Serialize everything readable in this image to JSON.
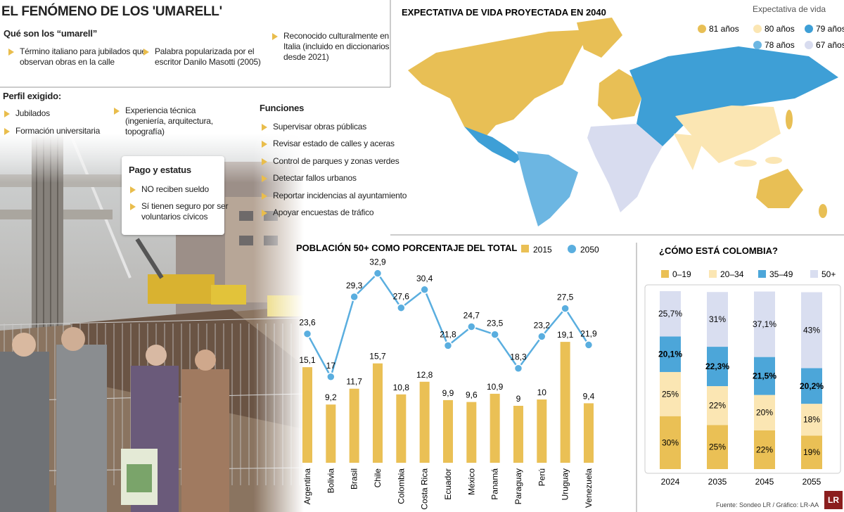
{
  "header": {
    "title": "EL FENÓMENO DE LOS 'UMARELL'"
  },
  "definition": {
    "title": "Qué son los “umarell”",
    "items": [
      "Término italiano para jubilados que observan obras en la calle",
      "Palabra popularizada por el escritor Danilo Masotti (2005)",
      "Reconocido culturalmente en Italia (incluido en diccionarios desde 2021)"
    ]
  },
  "profile": {
    "title": "Perfil exigido:",
    "items": [
      "Jubilados",
      "Formación universitaria",
      "Experiencia técnica (ingeniería, arquitectura, topografía)"
    ]
  },
  "functions": {
    "title": "Funciones",
    "items": [
      "Supervisar obras públicas",
      "Revisar estado de calles y aceras",
      "Control de parques y zonas verdes",
      "Detectar fallos urbanos",
      "Reportar incidencias al ayuntamiento",
      "Apoyar encuestas de tráfico"
    ]
  },
  "pay": {
    "title": "Pago y estatus",
    "items": [
      "NO reciben sueldo",
      "Sí tienen seguro por ser voluntarios cívicos"
    ]
  },
  "map": {
    "title": "EXPECTATIVA DE VIDA PROYECTADA EN 2040",
    "legend_title": "Expectativa de vida",
    "legend": [
      {
        "label": "81 años",
        "color": "#e8bf55"
      },
      {
        "label": "80 años",
        "color": "#fbe6b3"
      },
      {
        "label": "79 años",
        "color": "#3e9fd6"
      },
      {
        "label": "78 años",
        "color": "#6cb6e2"
      },
      {
        "label": "67 años",
        "color": "#d8dcef"
      }
    ]
  },
  "chart_data": [
    {
      "type": "bar",
      "title": "POBLACIÓN 50+ COMO PORCENTAJE DEL TOTAL",
      "categories": [
        "Argentina",
        "Bolivia",
        "Brasil",
        "Chile",
        "Colombia",
        "Costa Rica",
        "Ecuador",
        "México",
        "Panamá",
        "Paraguay",
        "Perú",
        "Uruguay",
        "Venezuela"
      ],
      "series": [
        {
          "name": "2015",
          "type": "bar",
          "color": "#eac055",
          "values": [
            15.1,
            9.2,
            11.7,
            15.7,
            10.8,
            12.8,
            9.9,
            9.6,
            10.9,
            9,
            10,
            19.1,
            9.4
          ],
          "value_labels": [
            "15,1",
            "9,2",
            "11,7",
            "15,7",
            "10,8",
            "12,8",
            "9,9",
            "9,6",
            "10,9",
            "9",
            "10",
            "19,1",
            "9,4"
          ]
        },
        {
          "name": "2050",
          "type": "line",
          "color": "#5aaedf",
          "values": [
            23.6,
            17,
            29.3,
            32.9,
            27.6,
            30.4,
            21.8,
            24.7,
            23.5,
            18.3,
            23.2,
            27.5,
            21.9
          ],
          "value_labels": [
            "23,6",
            "17",
            "29,3",
            "32,9",
            "27,6",
            "30,4",
            "21,8",
            "24,7",
            "23,5",
            "18,3",
            "23,2",
            "27,5",
            "21,9"
          ]
        }
      ]
    },
    {
      "type": "stacked_bar",
      "title": "¿CÓMO ESTÁ COLOMBIA?",
      "categories": [
        "2024",
        "2035",
        "2045",
        "2055"
      ],
      "series": [
        {
          "name": "0–19",
          "color": "#eac055",
          "values": [
            30,
            25,
            22,
            19
          ],
          "value_labels": [
            "30%",
            "25%",
            "22%",
            "19%"
          ]
        },
        {
          "name": "20–34",
          "color": "#fbe6b3",
          "values": [
            25,
            22,
            20,
            18
          ],
          "value_labels": [
            "25%",
            "22%",
            "20%",
            "18%"
          ]
        },
        {
          "name": "35–49",
          "color": "#4ca6d9",
          "values": [
            20.1,
            22.3,
            21.5,
            20.2
          ],
          "value_labels": [
            "20,1%",
            "22,3%",
            "21,5%",
            "20,2%"
          ]
        },
        {
          "name": "50+",
          "color": "#d9def0",
          "values": [
            25.7,
            31,
            37.1,
            43
          ],
          "value_labels": [
            "25,7%",
            "31%",
            "37,1%",
            "43%"
          ]
        }
      ]
    }
  ],
  "footer": {
    "source": "Fuente: Sondeo LR / Gráfico: LR-AA",
    "logo": "LR"
  }
}
